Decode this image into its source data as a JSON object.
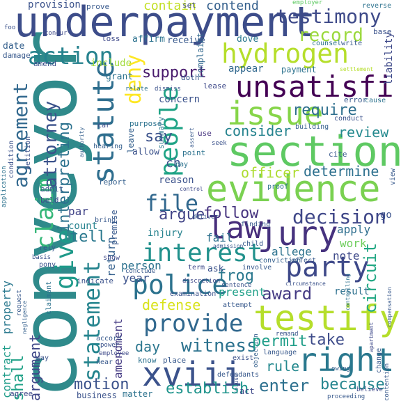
{
  "words": {
    "conveyor": {
      "text": "conveyor",
      "color": "#2f8a8b"
    },
    "underpayment": {
      "text": "underpayment",
      "color": "#3d4d8a"
    },
    "section": {
      "text": "section",
      "color": "#5ec962"
    },
    "evidence": {
      "text": "evidence",
      "color": "#7ad151"
    },
    "testify": {
      "text": "testify",
      "color": "#b5de2b"
    },
    "hydrogen": {
      "text": "hydrogen",
      "color": "#b5de2b"
    },
    "unsatisfi": {
      "text": "unsatisfi",
      "color": "#440154"
    },
    "issue": {
      "text": "issue",
      "color": "#86d549"
    },
    "right": {
      "text": "right",
      "color": "#2a788e"
    },
    "xviii": {
      "text": "xviii",
      "color": "#3b528b"
    },
    "jury": {
      "text": "jury",
      "color": "#46327e"
    },
    "party": {
      "text": "party",
      "color": "#3e4989"
    },
    "police": {
      "text": "police",
      "color": "#2c728e"
    },
    "provide": {
      "text": "provide",
      "color": "#31688e"
    },
    "law": {
      "text": "law",
      "color": "#472d7b"
    },
    "statute": {
      "text": "statute",
      "color": "#2e6e8e"
    },
    "people": {
      "text": "people",
      "color": "#20a486"
    },
    "claim": {
      "text": "claim",
      "color": "#35b779"
    },
    "give": {
      "text": "give",
      "color": "#1f9a8a"
    },
    "statement": {
      "text": "statement",
      "color": "#25848e"
    },
    "deny": {
      "text": "deny",
      "color": "#fde725"
    },
    "action": {
      "text": "action",
      "color": "#26828e"
    },
    "testimony": {
      "text": "testimony",
      "color": "#3e4a89"
    },
    "record": {
      "text": "record",
      "color": "#9bd93c"
    },
    "interest": {
      "text": "interest",
      "color": "#21918c"
    },
    "decision": {
      "text": "decision",
      "color": "#3f4788"
    },
    "file": {
      "text": "file",
      "color": "#31688e"
    },
    "witness": {
      "text": "witness",
      "color": "#2c728e"
    },
    "enter": {
      "text": "enter",
      "color": "#2d708e"
    },
    "because": {
      "text": "because",
      "color": "#25858e"
    },
    "establish": {
      "text": "establish",
      "color": "#1f948c"
    },
    "motion": {
      "text": "motion",
      "color": "#3b528b"
    },
    "support": {
      "text": "support",
      "color": "#481a6c"
    },
    "require": {
      "text": "require",
      "color": "#2e6f8e"
    },
    "consider": {
      "text": "consider",
      "color": "#25838e"
    },
    "review": {
      "text": "review",
      "color": "#23898e"
    },
    "determine": {
      "text": "determine",
      "color": "#2d708e"
    },
    "agreement": {
      "text": "agreement",
      "color": "#31688e"
    },
    "attorney": {
      "text": "attorney",
      "color": "#3b528b"
    },
    "interpreting": {
      "text": "interpreting",
      "color": "#2c728e"
    },
    "officer": {
      "text": "officer",
      "color": "#addc30"
    },
    "follow": {
      "text": "follow",
      "color": "#46337f"
    },
    "argue": {
      "text": "argue",
      "color": "#414487"
    },
    "tell": {
      "text": "tell",
      "color": "#2a788e"
    },
    "frog": {
      "text": "frog",
      "color": "#2a788e"
    },
    "award": {
      "text": "award",
      "color": "#443a83"
    },
    "circuit": {
      "text": "circuit",
      "color": "#22a884"
    },
    "take": {
      "text": "take",
      "color": "#3e4c8a"
    },
    "permit": {
      "text": "permit",
      "color": "#1f9e89"
    },
    "rule": {
      "text": "rule",
      "color": "#23888e"
    },
    "defense": {
      "text": "defense",
      "color": "#d8e219"
    },
    "day": {
      "text": "day",
      "color": "#2a768e"
    },
    "say": {
      "text": "say",
      "color": "#3b528b"
    },
    "contain": {
      "text": "contain",
      "color": "#c2df23"
    },
    "contend": {
      "text": "contend",
      "color": "#35608d"
    },
    "shall": {
      "text": "shall",
      "color": "#1fa187"
    },
    "argument": {
      "text": "argument",
      "color": "#3f4788"
    },
    "contract": {
      "text": "contract",
      "color": "#1e9c89"
    },
    "property": {
      "text": "property",
      "color": "#2a788e"
    },
    "provision": {
      "text": "provision",
      "color": "#3b528b"
    },
    "amendment": {
      "text": "amendment",
      "color": "#443a83"
    },
    "return": {
      "text": "return",
      "color": "#35608d"
    },
    "premise": {
      "text": "premise",
      "color": "#38598c"
    },
    "person": {
      "text": "person",
      "color": "#2c728e"
    },
    "note": {
      "text": "note",
      "color": "#3e4989"
    },
    "work": {
      "text": "work",
      "color": "#6ccd5a"
    },
    "apply": {
      "text": "apply",
      "color": "#2e6e8e"
    },
    "allege": {
      "text": "allege",
      "color": "#2c728e"
    },
    "present": {
      "text": "present",
      "color": "#1fa088"
    },
    "result": {
      "text": "result",
      "color": "#2d708e"
    },
    "year": {
      "text": "year",
      "color": "#3b528b"
    },
    "injury": {
      "text": "injury",
      "color": "#26828e"
    },
    "fail": {
      "text": "fail",
      "color": "#2d708e"
    },
    "count": {
      "text": "count",
      "color": "#26828e"
    },
    "par": {
      "text": "par",
      "color": "#414487"
    },
    "ch": {
      "text": "ch",
      "color": "#3b528b"
    },
    "reason": {
      "text": "reason",
      "color": "#3b528b"
    },
    "concern": {
      "text": "concern",
      "color": "#3b528b"
    },
    "complaint": {
      "text": "complaint",
      "color": "#31688e"
    },
    "payment": {
      "text": "payment",
      "color": "#2c728e"
    },
    "appear": {
      "text": "appear",
      "color": "#31688e"
    },
    "include": {
      "text": "include",
      "color": "#a0da39"
    },
    "grant": {
      "text": "grant",
      "color": "#2c728e"
    },
    "affirm": {
      "text": "affirm",
      "color": "#2c728e"
    },
    "receive": {
      "text": "receive",
      "color": "#38598c"
    },
    "dove": {
      "text": "dove",
      "color": "#2a788e"
    },
    "date": {
      "text": "date",
      "color": "#35608d"
    },
    "damage": {
      "text": "damage",
      "color": "#38598c"
    },
    "amend": {
      "text": "amend",
      "color": "#3b528b"
    },
    "loss": {
      "text": "loss",
      "color": "#3e4989"
    },
    "set": {
      "text": "set",
      "color": "#3e4989"
    },
    "prove": {
      "text": "prove",
      "color": "#38598c"
    },
    "employer": {
      "text": "employer",
      "color": "#5ec962"
    },
    "reverse": {
      "text": "reverse",
      "color": "#2c728e"
    },
    "base": {
      "text": "base",
      "color": "#3b528b"
    },
    "liability": {
      "text": "liability",
      "color": "#3e4989"
    },
    "settlement": {
      "text": "settlement",
      "color": "#b5de2b"
    },
    "counsel": {
      "text": "counsel",
      "color": "#2c728e"
    },
    "write": {
      "text": "write",
      "color": "#38598c"
    },
    "summary": {
      "text": "summary",
      "color": "#2a788e"
    },
    "purpose": {
      "text": "purpose",
      "color": "#2c728e"
    },
    "use": {
      "text": "use",
      "color": "#46337f"
    },
    "leave": {
      "text": "leave",
      "color": "#35608d"
    },
    "allow": {
      "text": "allow",
      "color": "#3b528b"
    },
    "point": {
      "text": "point",
      "color": "#2c728e"
    },
    "cite": {
      "text": "cite",
      "color": "#38598c"
    },
    "proof": {
      "text": "proof",
      "color": "#2c728e"
    },
    "view": {
      "text": "view",
      "color": "#38598c"
    },
    "conduct": {
      "text": "conduct",
      "color": "#3b528b"
    },
    "cause": {
      "text": "cause",
      "color": "#2c728e"
    },
    "building": {
      "text": "building",
      "color": "#35608d"
    },
    "hearing": {
      "text": "hearing",
      "color": "#35608d"
    },
    "car": {
      "text": "car",
      "color": "#3e4989"
    },
    "petition": {
      "text": "petition",
      "color": "#3b528b"
    },
    "condition": {
      "text": "condition",
      "color": "#3b528b"
    },
    "application": {
      "text": "application",
      "color": "#2c728e"
    },
    "admit": {
      "text": "admit",
      "color": "#3b528b"
    },
    "beld": {
      "text": "beld",
      "color": "#3e4989"
    },
    "report": {
      "text": "report",
      "color": "#35608d"
    },
    "bring": {
      "text": "bring",
      "color": "#38598c"
    },
    "show": {
      "text": "show",
      "color": "#3e4989"
    },
    "finding": {
      "text": "finding",
      "color": "#38598c"
    },
    "child": {
      "text": "child",
      "color": "#38598c"
    },
    "ask": {
      "text": "ask",
      "color": "#3b528b"
    },
    "involve": {
      "text": "involve",
      "color": "#38598c"
    },
    "term": {
      "text": "term",
      "color": "#3e4989"
    },
    "conclude": {
      "text": "conclude",
      "color": "#38598c"
    },
    "indicate": {
      "text": "indicate",
      "color": "#3b528b"
    },
    "claimant": {
      "text": "claimant",
      "color": "#2c728e"
    },
    "examination": {
      "text": "examination",
      "color": "#3b528b"
    },
    "attempt": {
      "text": "attempt",
      "color": "#38598c"
    },
    "controlling": {
      "text": "controlling",
      "color": "#2c728e"
    },
    "compensation": {
      "text": "compensation",
      "color": "#38598c"
    },
    "accord": {
      "text": "accord",
      "color": "#38598c"
    },
    "power": {
      "text": "power",
      "color": "#3b528b"
    },
    "employee": {
      "text": "employee",
      "color": "#3e4989"
    },
    "hear": {
      "text": "hear",
      "color": "#38598c"
    },
    "know": {
      "text": "know",
      "color": "#2c728e"
    },
    "place": {
      "text": "place",
      "color": "#38598c"
    },
    "exist": {
      "text": "exist",
      "color": "#3b528b"
    },
    "language": {
      "text": "language",
      "color": "#38598c"
    },
    "owing": {
      "text": "owing",
      "color": "#35608d"
    },
    "remand": {
      "text": "remand",
      "color": "#3b528b"
    },
    "apartment": {
      "text": "apartment",
      "color": "#3e4989"
    },
    "change": {
      "text": "change",
      "color": "#38598c"
    },
    "objection": {
      "text": "objection",
      "color": "#35608d"
    },
    "defendants": {
      "text": "defendants",
      "color": "#38598c"
    },
    "business": {
      "text": "business",
      "color": "#3b528b"
    },
    "matter": {
      "text": "matter",
      "color": "#2c728e"
    },
    "act": {
      "text": "act",
      "color": "#3e4989"
    },
    "agree": {
      "text": "agree",
      "color": "#3e4989"
    },
    "pony": {
      "text": "pony",
      "color": "#3b528b"
    },
    "rely": {
      "text": "rely",
      "color": "#38598c"
    },
    "basis": {
      "text": "basis",
      "color": "#3b528b"
    },
    "request": {
      "text": "request",
      "color": "#38598c"
    },
    "negligence": {
      "text": "negligence",
      "color": "#35608d"
    },
    "way": {
      "text": "way",
      "color": "#3b528b"
    },
    "relate": {
      "text": "relate",
      "color": "#2c728e"
    },
    "doth": {
      "text": "doth",
      "color": "#38598c"
    },
    "lease": {
      "text": "lease",
      "color": "#3e4989"
    },
    "dismiss": {
      "text": "dismiss",
      "color": "#3b528b"
    },
    "conviction": {
      "text": "conviction",
      "color": "#35608d"
    },
    "effect": {
      "text": "effect",
      "color": "#38598c"
    },
    "sentence": {
      "text": "sentence",
      "color": "#3b528b"
    },
    "discretion": {
      "text": "discretion",
      "color": "#3e4989"
    },
    "pay": {
      "text": "pay",
      "color": "#2c728e"
    },
    "deliver": {
      "text": "deliver",
      "color": "#38598c"
    },
    "go": {
      "text": "go",
      "color": "#3b528b"
    },
    "error": {
      "text": "error",
      "color": "#38598c"
    },
    "foo": {
      "text": "foo",
      "color": "#3b528b"
    },
    "concur": {
      "text": "concur",
      "color": "#3e4989"
    },
    "authority": {
      "text": "authority",
      "color": "#35608d"
    },
    "seek": {
      "text": "seek",
      "color": "#3b528b"
    },
    "assert": {
      "text": "assert",
      "color": "#38598c"
    },
    "control": {
      "text": "control",
      "color": "#3e4989"
    },
    "admission": {
      "text": "admission",
      "color": "#38598c"
    },
    "circumstance": {
      "text": "circumstance",
      "color": "#3b528b"
    },
    "proceeding": {
      "text": "proceeding",
      "color": "#38598c"
    },
    "believe": {
      "text": "believe",
      "color": "#3e4989"
    },
    "contention": {
      "text": "contention",
      "color": "#38598c"
    },
    "refuse": {
      "text": "refuse",
      "color": "#3b528b"
    }
  }
}
